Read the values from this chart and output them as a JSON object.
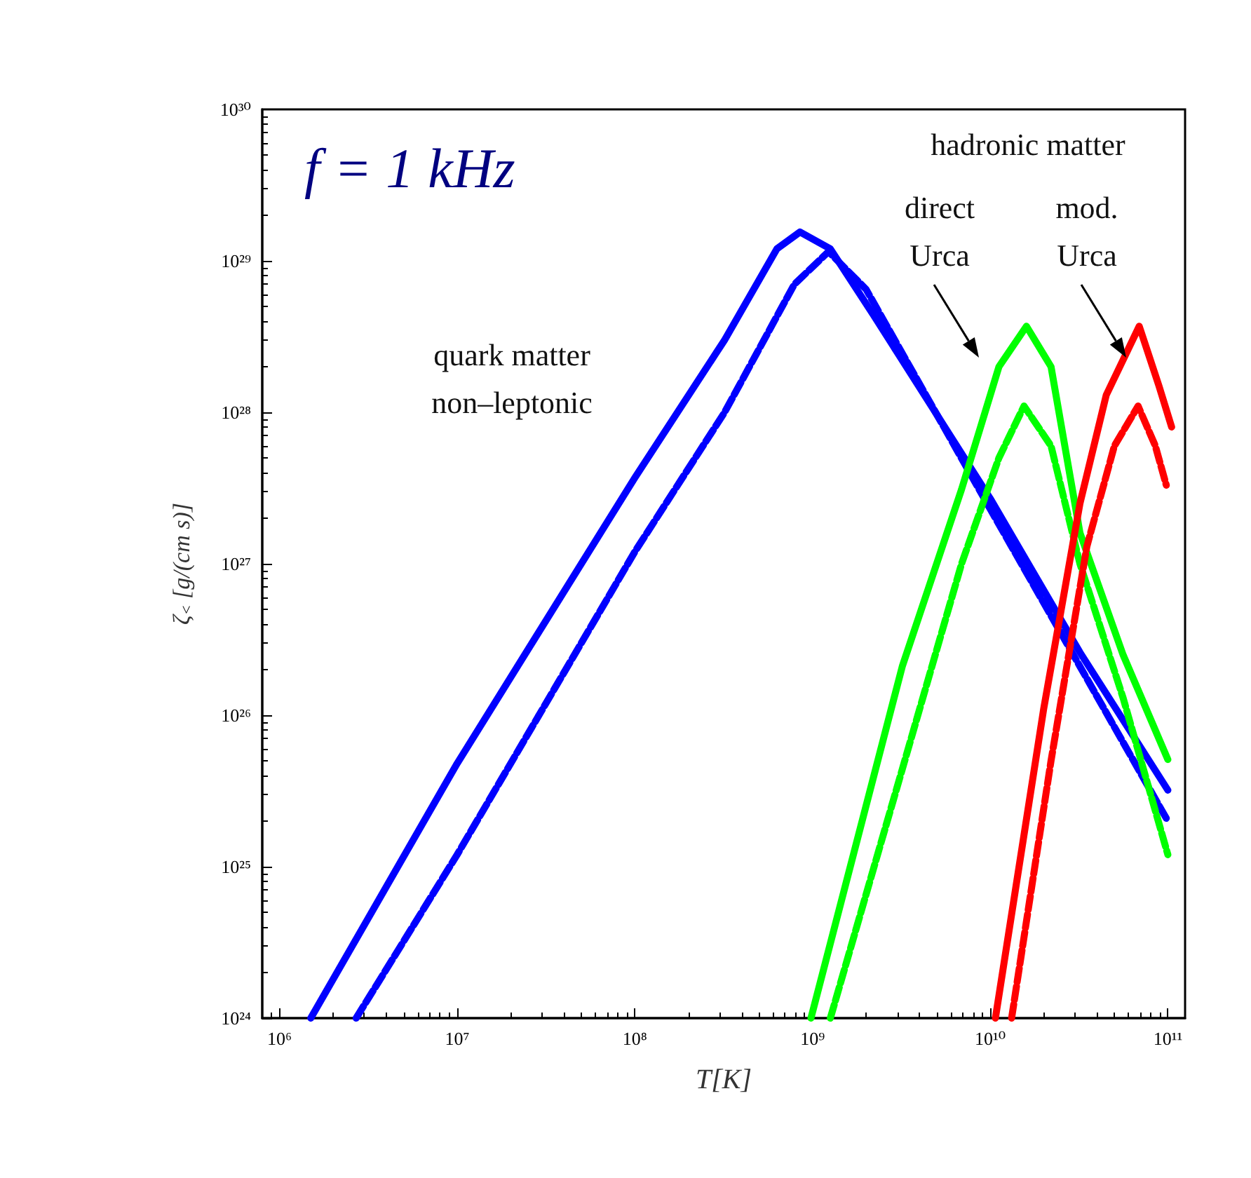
{
  "chart_data": {
    "type": "line",
    "xlabel": "T[K]",
    "ylabel": "ζ$_{<}$ [g/(cm s)]",
    "log": "xy",
    "grid": false,
    "marker": "none",
    "xlim": [
      800000,
      125000000000
    ],
    "ylim": [
      1e+24,
      1e+30
    ],
    "xticks": [
      {
        "value": 1000000.0,
        "label": "10⁶"
      },
      {
        "value": 10000000.0,
        "label": "10⁷"
      },
      {
        "value": 100000000.0,
        "label": "10⁸"
      },
      {
        "value": 1000000000.0,
        "label": "10⁹"
      },
      {
        "value": 10000000000.0,
        "label": "10¹⁰"
      },
      {
        "value": 100000000000.0,
        "label": "10¹¹"
      }
    ],
    "yticks": [
      {
        "value": 1e+24,
        "label": "10²⁴"
      },
      {
        "value": 1e+25,
        "label": "10²⁵"
      },
      {
        "value": 1e+26,
        "label": "10²⁶"
      },
      {
        "value": 1e+27,
        "label": "10²⁷"
      },
      {
        "value": 1e+28,
        "label": "10²⁸"
      },
      {
        "value": 1e+29,
        "label": "10²⁹"
      },
      {
        "value": 1e+30,
        "label": "10³⁰"
      }
    ],
    "series": [
      {
        "color": "#0000ff",
        "line_style": "solid",
        "x": [
          1500000.0,
          10000000.0,
          100000000.0,
          320000000.0,
          630000000.0,
          850000000.0,
          1260000000.0,
          2200000000.0,
          10000000000.0,
          32000000000.0,
          100000000000.0
        ],
        "values": [
          1e+24,
          4.8e+25,
          3.7e+27,
          3e+28,
          1.2e+29,
          1.55e+29,
          1.2e+29,
          4.4e+28,
          2.7e+27,
          2.6e+26,
          3.2e+25
        ]
      },
      {
        "color": "#0000ff",
        "line_style": "dashed",
        "x": [
          2700000.0,
          10000000.0,
          100000000.0,
          320000000.0,
          790000000.0,
          1230000000.0,
          2000000000.0,
          10000000000.0,
          32000000000.0,
          100000000000.0
        ],
        "values": [
          1e+24,
          1.2e+25,
          1.2e+27,
          1e+28,
          7e+28,
          1.15e+29,
          6.5e+28,
          2.3e+27,
          2.1e+26,
          2e+25
        ]
      },
      {
        "color": "#00ff00",
        "line_style": "solid",
        "x": [
          980000000.0,
          3200000000.0,
          6900000000.0,
          11200000000.0,
          16000000000.0,
          22000000000.0,
          32000000000.0,
          56000000000.0,
          100000000000.0
        ],
        "values": [
          1e+24,
          2.1e+26,
          3.1e+27,
          2e+28,
          3.7e+28,
          2e+28,
          1.6e+27,
          2.5e+26,
          5.1e+25
        ]
      },
      {
        "color": "#00ff00",
        "line_style": "dashed",
        "x": [
          1260000000.0,
          3200000000.0,
          6900000000.0,
          11200000000.0,
          15500000000.0,
          22000000000.0,
          32000000000.0,
          56000000000.0,
          100000000000.0
        ],
        "values": [
          1e+24,
          4.4e+25,
          1e+27,
          5e+27,
          1.1e+28,
          6e+27,
          1e+27,
          1.3e+26,
          1.2e+25
        ]
      },
      {
        "color": "#ff0000",
        "line_style": "solid",
        "x": [
          10700000000.0,
          20000000000.0,
          32000000000.0,
          45000000000.0,
          69000000000.0,
          89000000000.0,
          105000000000.0
        ],
        "values": [
          1e+24,
          1.1e+26,
          2.5e+27,
          1.3e+28,
          3.7e+28,
          1.5e+28,
          8e+27
        ]
      },
      {
        "color": "#ff0000",
        "line_style": "dashed",
        "x": [
          13200000000.0,
          22000000000.0,
          35000000000.0,
          50000000000.0,
          68000000000.0,
          85000000000.0,
          98000000000.0
        ],
        "values": [
          1e+24,
          5e+25,
          1.3e+27,
          6e+27,
          1.1e+28,
          6e+27,
          3.3e+27
        ]
      }
    ],
    "annotations": [
      "f = 1 kHz",
      "quark matter\nnon–leptonic",
      "hadronic matter",
      "direct\nUrca",
      "mod.\nUrca"
    ]
  }
}
